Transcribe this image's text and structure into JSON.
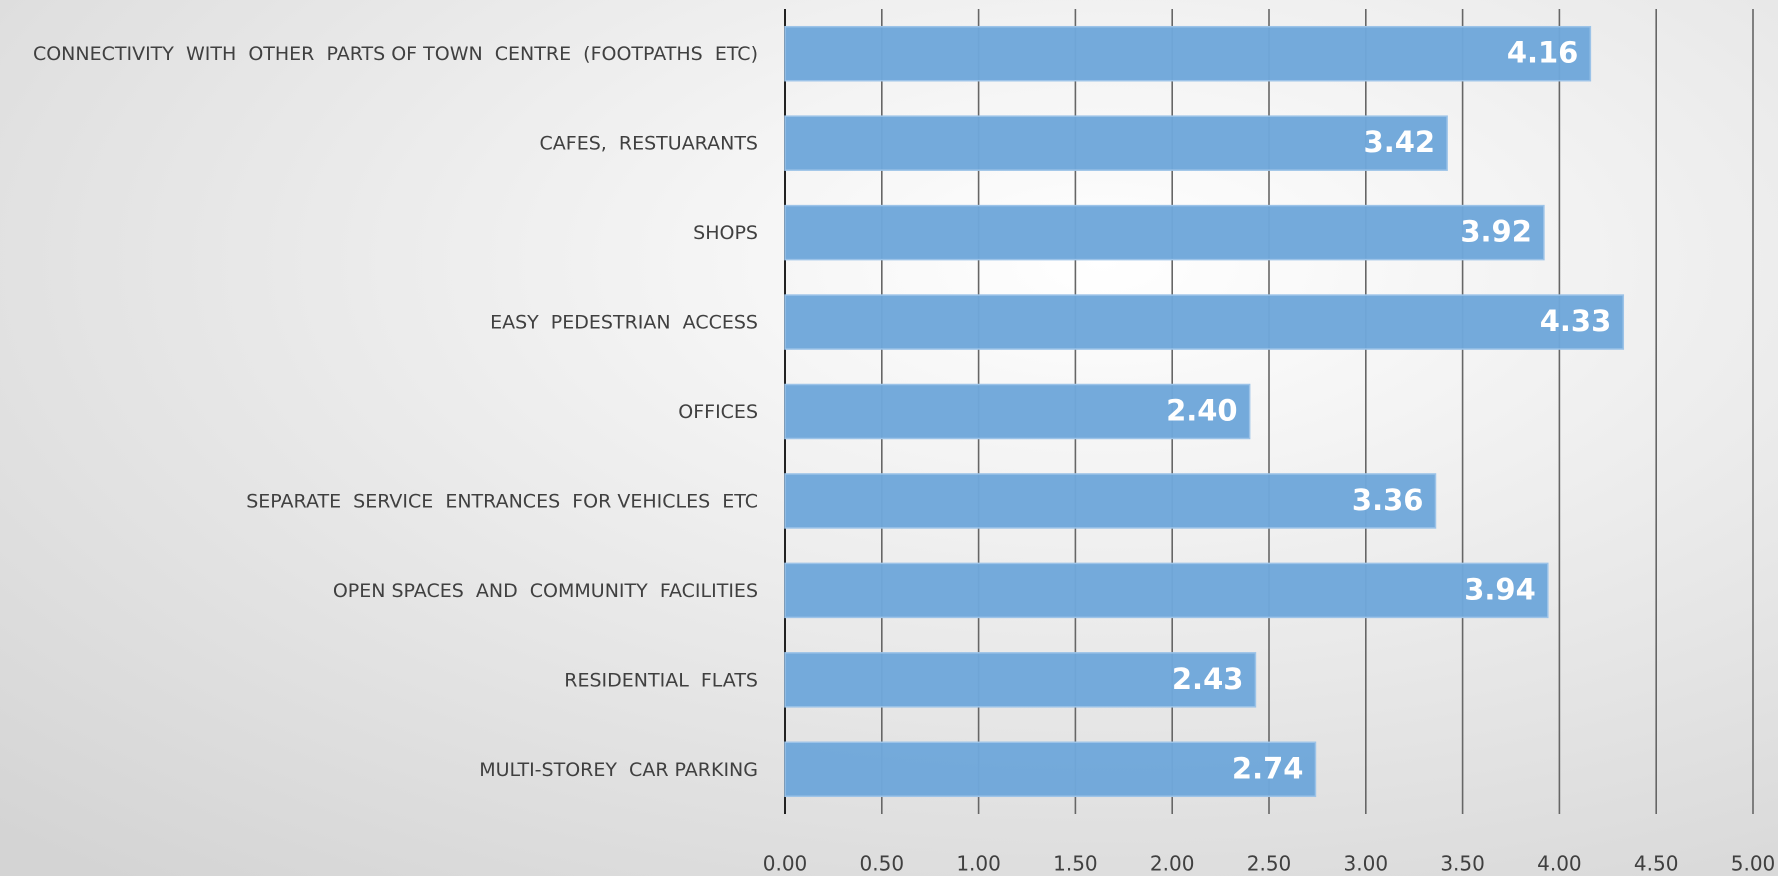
{
  "chart_data": {
    "type": "bar",
    "orientation": "horizontal",
    "categories": [
      "CONNECTIVITY  WITH  OTHER  PARTS OF TOWN  CENTRE  (FOOTPATHS  ETC)",
      "CAFES,  RESTUARANTS",
      "SHOPS",
      "EASY  PEDESTRIAN  ACCESS",
      "OFFICES",
      "SEPARATE  SERVICE  ENTRANCES  FOR VEHICLES  ETC",
      "OPEN SPACES  AND  COMMUNITY  FACILITIES",
      "RESIDENTIAL  FLATS",
      "MULTI-STOREY  CAR PARKING"
    ],
    "values": [
      4.16,
      3.42,
      3.92,
      4.33,
      2.4,
      3.36,
      3.94,
      2.43,
      2.74
    ],
    "value_labels": [
      "4.16",
      "3.42",
      "3.92",
      "4.33",
      "2.40",
      "3.36",
      "3.94",
      "2.43",
      "2.74"
    ],
    "color": "#6fa7da",
    "xlim": [
      0,
      5
    ],
    "xticks": [
      {
        "value": 0,
        "label": "0.00"
      },
      {
        "value": 0.5,
        "label": "0.50"
      },
      {
        "value": 1,
        "label": "1.00"
      },
      {
        "value": 1.5,
        "label": "1.50"
      },
      {
        "value": 2,
        "label": "2.00"
      },
      {
        "value": 2.5,
        "label": "2.50"
      },
      {
        "value": 3,
        "label": "3.00"
      },
      {
        "value": 3.5,
        "label": "3.50"
      },
      {
        "value": 4,
        "label": "4.00"
      },
      {
        "value": 4.5,
        "label": "4.50"
      },
      {
        "value": 5,
        "label": "5.00"
      }
    ],
    "grid": true
  }
}
